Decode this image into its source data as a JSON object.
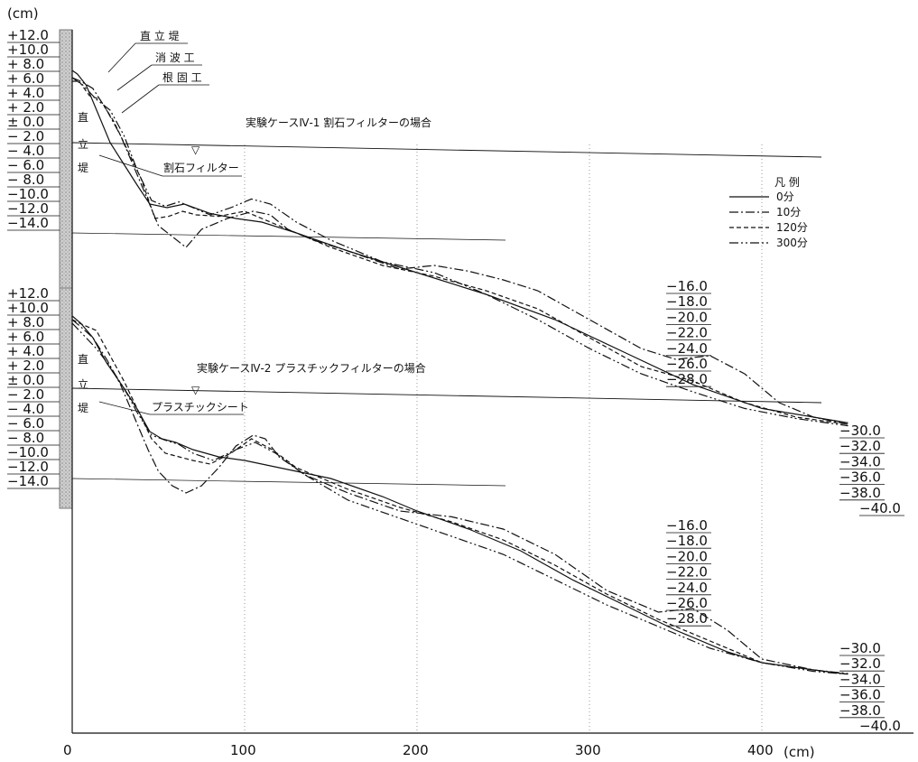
{
  "chart_data": [
    {
      "type": "line",
      "title": "実験ケースⅣ-1 割石フィルターの場合",
      "y_unit": "(cm)",
      "y_ticks": [
        "+12.0",
        "+10.0",
        "+ 8.0",
        "+ 6.0",
        "+ 4.0",
        "+ 2.0",
        "± 0.0",
        "− 2.0",
        "− 4.0",
        "− 6.0",
        "− 8.0",
        "−10.0",
        "−12.0",
        "−14.0"
      ],
      "right_depth_labels": [
        "−16.0",
        "−18.0",
        "−20.0",
        "−22.0",
        "−24.0",
        "−26.0",
        "−28.0",
        "−30.0",
        "−32.0",
        "−34.0",
        "−36.0",
        "−38.0",
        "−40.0"
      ],
      "wall_vertical_label": [
        "直",
        "立",
        "堤"
      ],
      "annotations": [
        "直 立 堤",
        "消 波 工",
        "根 固 工",
        "割石フィルター",
        "▽"
      ],
      "legend_title": "凡 例",
      "series": [
        {
          "name": "0分",
          "dash": "solid",
          "x": [
            0,
            3,
            8,
            15,
            22,
            30,
            38,
            45,
            55,
            65,
            80,
            95,
            110,
            130,
            160,
            200,
            240,
            280,
            320,
            360,
            400,
            430,
            450
          ],
          "y": [
            10.0,
            9.5,
            8.0,
            4.0,
            0.0,
            -3.0,
            -6.0,
            -8.5,
            -9.0,
            -8.5,
            -9.8,
            -10.5,
            -11.0,
            -12.5,
            -15.0,
            -18.0,
            -21.0,
            -24.5,
            -29.0,
            -33.5,
            -36.8,
            -38.0,
            -38.8
          ]
        },
        {
          "name": "10分",
          "dash": "dash-dot",
          "x": [
            0,
            5,
            12,
            20,
            28,
            36,
            44,
            50,
            58,
            66,
            75,
            90,
            105,
            115,
            125,
            140,
            160,
            190,
            210,
            230,
            250,
            270,
            300,
            330,
            350,
            370,
            390,
            410,
            430,
            450
          ],
          "y": [
            9.0,
            8.5,
            7.5,
            4.5,
            1.0,
            -3.5,
            -8.0,
            -11.5,
            -13.0,
            -14.5,
            -12.0,
            -10.5,
            -9.5,
            -10.0,
            -12.0,
            -13.5,
            -15.0,
            -17.5,
            -17.0,
            -17.8,
            -19.0,
            -20.5,
            -24.5,
            -28.5,
            -30.0,
            -29.5,
            -32.0,
            -36.0,
            -38.0,
            -39.0
          ]
        },
        {
          "name": "120分",
          "dash": "dash",
          "x": [
            0,
            4,
            10,
            16,
            24,
            32,
            40,
            48,
            56,
            64,
            72,
            85,
            100,
            120,
            150,
            180,
            210,
            240,
            270,
            300,
            330,
            360,
            390,
            420,
            450
          ],
          "y": [
            8.5,
            8.5,
            6.5,
            6.0,
            3.0,
            -1.0,
            -5.0,
            -10.5,
            -10.2,
            -9.5,
            -10.0,
            -10.2,
            -9.5,
            -11.5,
            -14.5,
            -17.0,
            -18.5,
            -20.5,
            -23.0,
            -27.0,
            -31.0,
            -33.0,
            -36.0,
            -38.0,
            -39.0
          ]
        },
        {
          "name": "300分",
          "dash": "dash-dot-dot",
          "x": [
            0,
            6,
            14,
            22,
            30,
            38,
            46,
            54,
            62,
            70,
            80,
            92,
            104,
            115,
            130,
            150,
            180,
            210,
            240,
            270,
            300,
            330,
            360,
            390,
            420,
            450
          ],
          "y": [
            9.0,
            8.0,
            6.0,
            4.5,
            1.0,
            -4.0,
            -8.0,
            -8.8,
            -8.2,
            -9.0,
            -10.0,
            -9.0,
            -7.8,
            -8.5,
            -11.0,
            -13.5,
            -16.5,
            -18.0,
            -21.0,
            -24.5,
            -28.5,
            -32.0,
            -34.5,
            -36.8,
            -38.2,
            -39.2
          ]
        }
      ]
    },
    {
      "type": "line",
      "title": "実験ケースⅣ-2 プラスチックフィルターの場合",
      "y_ticks": [
        "+12.0",
        "+10.0",
        "+ 8.0",
        "+ 6.0",
        "+ 4.0",
        "+ 2.0",
        "± 0.0",
        "− 2.0",
        "− 4.0",
        "− 6.0",
        "− 8.0",
        "−10.0",
        "−12.0",
        "−14.0"
      ],
      "right_depth_labels": [
        "−16.0",
        "−18.0",
        "−20.0",
        "−22.0",
        "−24.0",
        "−26.0",
        "−28.0",
        "−30.0",
        "−32.0",
        "−34.0",
        "−36.0",
        "−38.0",
        "−40.0"
      ],
      "wall_vertical_label": [
        "直",
        "立",
        "堤"
      ],
      "annotations": [
        "プラスチックシート",
        "▽"
      ],
      "x_ticks": [
        "0",
        "100",
        "200",
        "300",
        "400"
      ],
      "x_unit": "(cm)",
      "xlim": [
        0,
        450
      ],
      "series": [
        {
          "name": "0分",
          "dash": "solid",
          "x": [
            0,
            5,
            12,
            20,
            30,
            38,
            45,
            52,
            60,
            70,
            85,
            100,
            120,
            150,
            180,
            200,
            230,
            260,
            290,
            320,
            350,
            380,
            400,
            430,
            450
          ],
          "y": [
            10.0,
            9.0,
            7.0,
            3.5,
            0.0,
            -3.0,
            -6.0,
            -7.0,
            -7.5,
            -8.5,
            -9.5,
            -10.0,
            -11.0,
            -12.5,
            -15.0,
            -17.0,
            -19.5,
            -22.5,
            -26.5,
            -30.0,
            -33.5,
            -36.5,
            -38.0,
            -39.0,
            -39.6
          ]
        },
        {
          "name": "10分",
          "dash": "dash-dot",
          "x": [
            0,
            5,
            12,
            20,
            28,
            36,
            44,
            50,
            58,
            66,
            75,
            85,
            95,
            105,
            112,
            120,
            135,
            160,
            190,
            220,
            250,
            280,
            310,
            340,
            360,
            380,
            400,
            430,
            450
          ],
          "y": [
            9.5,
            8.5,
            7.0,
            4.0,
            0.5,
            -4.0,
            -8.5,
            -11.5,
            -13.5,
            -14.5,
            -13.5,
            -11.0,
            -8.0,
            -6.5,
            -7.0,
            -9.5,
            -12.0,
            -14.5,
            -17.0,
            -17.8,
            -19.5,
            -23.0,
            -28.0,
            -31.0,
            -30.5,
            -33.5,
            -37.5,
            -39.0,
            -39.5
          ]
        },
        {
          "name": "120分",
          "dash": "dash",
          "x": [
            0,
            6,
            14,
            22,
            30,
            38,
            46,
            54,
            62,
            70,
            80,
            92,
            104,
            116,
            130,
            160,
            190,
            220,
            250,
            280,
            310,
            340,
            370,
            400,
            430,
            450
          ],
          "y": [
            9.5,
            8.8,
            8.0,
            4.5,
            1.0,
            -3.0,
            -7.0,
            -9.0,
            -9.5,
            -10.0,
            -10.5,
            -9.0,
            -7.0,
            -8.5,
            -11.0,
            -14.0,
            -16.5,
            -18.5,
            -21.0,
            -24.5,
            -28.5,
            -32.0,
            -35.0,
            -38.0,
            -39.0,
            -39.6
          ]
        },
        {
          "name": "300分",
          "dash": "dash-dot-dot",
          "x": [
            0,
            6,
            14,
            22,
            30,
            38,
            46,
            54,
            62,
            70,
            82,
            95,
            106,
            118,
            135,
            160,
            190,
            220,
            250,
            280,
            310,
            340,
            370,
            400,
            430,
            450
          ],
          "y": [
            9.0,
            7.5,
            5.5,
            3.0,
            0.0,
            -3.5,
            -6.5,
            -7.2,
            -7.8,
            -9.0,
            -10.0,
            -8.5,
            -7.5,
            -9.0,
            -12.0,
            -15.5,
            -18.0,
            -20.5,
            -23.0,
            -26.5,
            -30.0,
            -33.0,
            -36.0,
            -38.0,
            -39.2,
            -39.6
          ]
        }
      ]
    }
  ],
  "legend": {
    "title": "凡 例",
    "items": [
      "0分",
      "10分",
      "120分",
      "300分"
    ]
  }
}
